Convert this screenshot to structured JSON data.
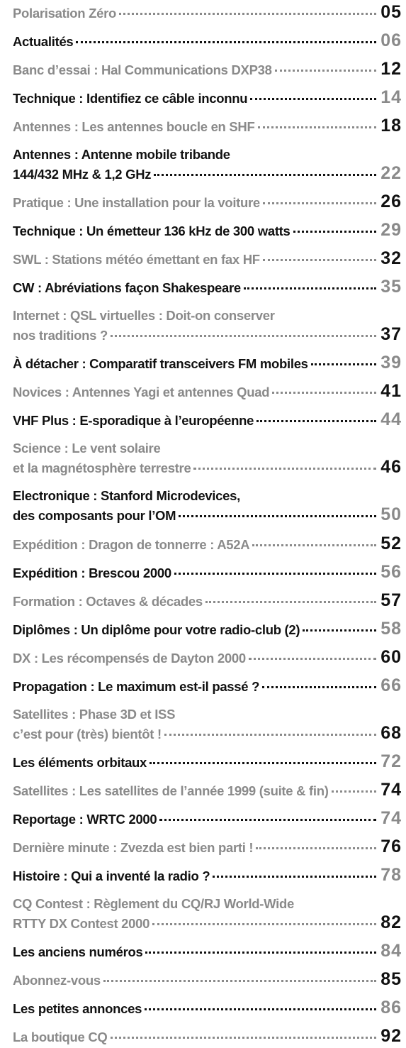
{
  "entries": [
    {
      "lines": [
        "Polarisation Zéro"
      ],
      "page": "05"
    },
    {
      "lines": [
        "Actualités"
      ],
      "page": "06"
    },
    {
      "lines": [
        "Banc d’essai : Hal Communications DXP38"
      ],
      "page": "12"
    },
    {
      "lines": [
        "Technique : Identifiez ce câble inconnu"
      ],
      "page": "14"
    },
    {
      "lines": [
        "Antennes : Les antennes boucle en SHF"
      ],
      "page": "18"
    },
    {
      "lines": [
        "Antennes : Antenne mobile tribande",
        "144/432  MHz & 1,2 GHz"
      ],
      "page": "22"
    },
    {
      "lines": [
        "Pratique : Une installation pour la voiture"
      ],
      "page": "26"
    },
    {
      "lines": [
        "Technique : Un émetteur 136 kHz de 300 watts"
      ],
      "page": "29"
    },
    {
      "lines": [
        "SWL : Stations météo émettant en fax HF"
      ],
      "page": "32"
    },
    {
      "lines": [
        "CW : Abréviations façon Shakespeare"
      ],
      "page": "35"
    },
    {
      "lines": [
        "Internet : QSL virtuelles : Doit-on conserver",
        "nos traditions ?"
      ],
      "page": "37"
    },
    {
      "lines": [
        "À détacher : Comparatif transceivers FM mobiles"
      ],
      "page": "39"
    },
    {
      "lines": [
        "Novices : Antennes Yagi et antennes Quad"
      ],
      "page": "41"
    },
    {
      "lines": [
        "VHF Plus : E-sporadique à l’européenne"
      ],
      "page": "44"
    },
    {
      "lines": [
        "Science : Le vent solaire",
        "et la magnétosphère terrestre"
      ],
      "page": "46"
    },
    {
      "lines": [
        "Electronique : Stanford Microdevices,",
        "des composants pour l’OM"
      ],
      "page": "50"
    },
    {
      "lines": [
        "Expédition : Dragon de tonnerre : A52A"
      ],
      "page": "52"
    },
    {
      "lines": [
        "Expédition : Brescou 2000"
      ],
      "page": "56"
    },
    {
      "lines": [
        "Formation : Octaves & décades"
      ],
      "page": "57"
    },
    {
      "lines": [
        "Diplômes : Un diplôme pour votre radio-club (2)"
      ],
      "page": "58"
    },
    {
      "lines": [
        "DX : Les récompensés de Dayton 2000"
      ],
      "page": "60"
    },
    {
      "lines": [
        "Propagation : Le maximum est-il passé ?"
      ],
      "page": "66"
    },
    {
      "lines": [
        "Satellites : Phase 3D et ISS",
        "c’est pour (très) bientôt !"
      ],
      "page": "68"
    },
    {
      "lines": [
        "Les éléments orbitaux"
      ],
      "page": "72"
    },
    {
      "lines": [
        "Satellites : Les satellites de l’année 1999 (suite & fin)"
      ],
      "page": "74"
    },
    {
      "lines": [
        "Reportage : WRTC 2000"
      ],
      "page": "74"
    },
    {
      "lines": [
        "Dernière minute : Zvezda est bien parti !"
      ],
      "page": "76"
    },
    {
      "lines": [
        "Histoire : Qui a inventé la radio ?"
      ],
      "page": "78"
    },
    {
      "lines": [
        "CQ Contest : Règlement du CQ/RJ World-Wide",
        "RTTY DX Contest 2000"
      ],
      "page": "82"
    },
    {
      "lines": [
        "Les anciens numéros"
      ],
      "page": "84"
    },
    {
      "lines": [
        "Abonnez-vous"
      ],
      "page": "85"
    },
    {
      "lines": [
        "Les petites annonces"
      ],
      "page": "86"
    },
    {
      "lines": [
        "La boutique CQ"
      ],
      "page": "92"
    }
  ]
}
